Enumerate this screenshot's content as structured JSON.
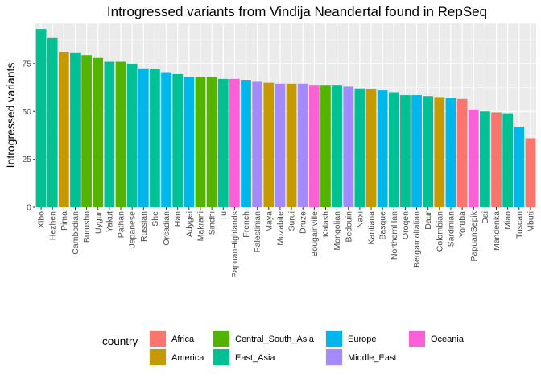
{
  "chart_data": {
    "type": "bar",
    "title": "Introgressed variants from Vindija Neandertal found in RepSeq",
    "xlabel": "",
    "ylabel": "Introgressed variants",
    "ylim": [
      0,
      96
    ],
    "yticks": [
      0,
      25,
      50,
      75
    ],
    "grid": true,
    "legend_position": "bottom",
    "legend_title": "country",
    "legend": [
      {
        "name": "Africa",
        "color": "#F8766D"
      },
      {
        "name": "America",
        "color": "#C49A00"
      },
      {
        "name": "Central_South_Asia",
        "color": "#53B400"
      },
      {
        "name": "East_Asia",
        "color": "#00C094"
      },
      {
        "name": "Europe",
        "color": "#00B6EB"
      },
      {
        "name": "Middle_East",
        "color": "#A58AFF"
      },
      {
        "name": "Oceania",
        "color": "#FB61D7"
      }
    ],
    "bars": [
      {
        "label": "Xibo",
        "value": 93,
        "group": "East_Asia"
      },
      {
        "label": "Hezhen",
        "value": 88.5,
        "group": "East_Asia"
      },
      {
        "label": "Pima",
        "value": 81,
        "group": "America"
      },
      {
        "label": "Cambodian",
        "value": 80.5,
        "group": "East_Asia"
      },
      {
        "label": "Burusho",
        "value": 79.5,
        "group": "Central_South_Asia"
      },
      {
        "label": "Uygur",
        "value": 78,
        "group": "Central_South_Asia"
      },
      {
        "label": "Yakut",
        "value": 76,
        "group": "East_Asia"
      },
      {
        "label": "Pathan",
        "value": 76,
        "group": "Central_South_Asia"
      },
      {
        "label": "Japanese",
        "value": 75,
        "group": "East_Asia"
      },
      {
        "label": "Russian",
        "value": 72.5,
        "group": "Europe"
      },
      {
        "label": "She",
        "value": 72,
        "group": "East_Asia"
      },
      {
        "label": "Orcadian",
        "value": 70.5,
        "group": "Europe"
      },
      {
        "label": "Han",
        "value": 69.5,
        "group": "East_Asia"
      },
      {
        "label": "Adygei",
        "value": 68,
        "group": "Europe"
      },
      {
        "label": "Makrani",
        "value": 68,
        "group": "Central_South_Asia"
      },
      {
        "label": "Sindhi",
        "value": 68,
        "group": "Central_South_Asia"
      },
      {
        "label": "Tu",
        "value": 67,
        "group": "East_Asia"
      },
      {
        "label": "PapuanHighlands",
        "value": 67,
        "group": "Oceania"
      },
      {
        "label": "French",
        "value": 66.5,
        "group": "Europe"
      },
      {
        "label": "Palestinian",
        "value": 65.5,
        "group": "Middle_East"
      },
      {
        "label": "Maya",
        "value": 65,
        "group": "America"
      },
      {
        "label": "Mozabite",
        "value": 64.5,
        "group": "Middle_East"
      },
      {
        "label": "Surui",
        "value": 64.5,
        "group": "America"
      },
      {
        "label": "Druze",
        "value": 64.5,
        "group": "Middle_East"
      },
      {
        "label": "Bougainville",
        "value": 63.5,
        "group": "Oceania"
      },
      {
        "label": "Kalash",
        "value": 63.5,
        "group": "Central_South_Asia"
      },
      {
        "label": "Mongolian",
        "value": 63.5,
        "group": "East_Asia"
      },
      {
        "label": "Bedouin",
        "value": 63,
        "group": "Middle_East"
      },
      {
        "label": "Naxi",
        "value": 62,
        "group": "East_Asia"
      },
      {
        "label": "Karitiana",
        "value": 61.5,
        "group": "America"
      },
      {
        "label": "Basque",
        "value": 61,
        "group": "Europe"
      },
      {
        "label": "NorthernHan",
        "value": 60,
        "group": "East_Asia"
      },
      {
        "label": "Oroqen",
        "value": 58.5,
        "group": "East_Asia"
      },
      {
        "label": "Bergamoltalian",
        "value": 58.5,
        "group": "Europe"
      },
      {
        "label": "Daur",
        "value": 58,
        "group": "East_Asia"
      },
      {
        "label": "Colombian",
        "value": 57.5,
        "group": "America"
      },
      {
        "label": "Sardinian",
        "value": 57,
        "group": "Europe"
      },
      {
        "label": "Yoruba",
        "value": 56.5,
        "group": "Africa"
      },
      {
        "label": "PapuanSepik",
        "value": 51,
        "group": "Oceania"
      },
      {
        "label": "Dai",
        "value": 50,
        "group": "East_Asia"
      },
      {
        "label": "Mandenka",
        "value": 49.5,
        "group": "Africa"
      },
      {
        "label": "Miao",
        "value": 49,
        "group": "East_Asia"
      },
      {
        "label": "Tuscan",
        "value": 42,
        "group": "Europe"
      },
      {
        "label": "Mbuti",
        "value": 36,
        "group": "Africa"
      }
    ]
  }
}
